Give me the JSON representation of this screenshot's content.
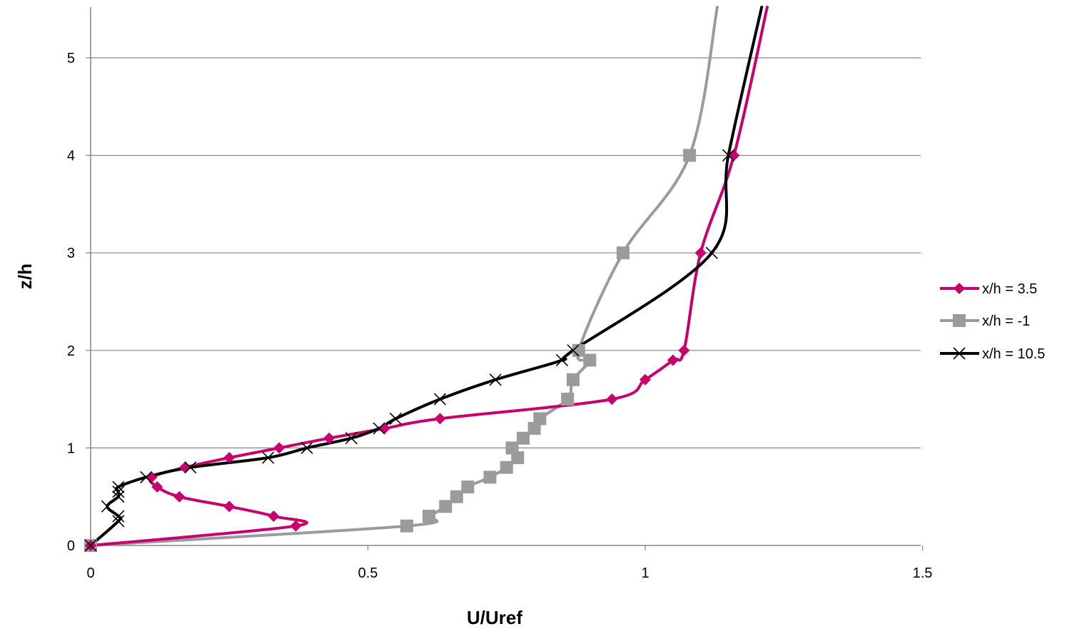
{
  "chart_data": {
    "type": "line",
    "xlabel": "U/Uref",
    "ylabel": "z/h",
    "xlim": [
      0,
      1.5
    ],
    "ylim": [
      0,
      5.5
    ],
    "xticks": [
      0,
      0.5,
      1,
      1.5
    ],
    "xtick_labels": [
      "0",
      "0.5",
      "1",
      "1.5"
    ],
    "yticks": [
      0,
      1,
      2,
      3,
      4,
      5
    ],
    "ytick_labels": [
      "0",
      "1",
      "2",
      "3",
      "4",
      "5"
    ],
    "grid": "horizontal",
    "legend_position": "right",
    "series": [
      {
        "name": "x/h = 3.5",
        "color": "#C8006E",
        "marker": "diamond",
        "points": [
          [
            0,
            0
          ],
          [
            0.37,
            0.2
          ],
          [
            0.33,
            0.3
          ],
          [
            0.25,
            0.4
          ],
          [
            0.16,
            0.5
          ],
          [
            0.12,
            0.6
          ],
          [
            0.11,
            0.7
          ],
          [
            0.17,
            0.8
          ],
          [
            0.25,
            0.9
          ],
          [
            0.34,
            1.0
          ],
          [
            0.43,
            1.1
          ],
          [
            0.53,
            1.2
          ],
          [
            0.63,
            1.3
          ],
          [
            0.94,
            1.5
          ],
          [
            1.0,
            1.7
          ],
          [
            1.05,
            1.9
          ],
          [
            1.07,
            2.0
          ],
          [
            1.1,
            3.0
          ],
          [
            1.16,
            4.0
          ]
        ],
        "tail": [
          1.22,
          5.5
        ]
      },
      {
        "name": "x/h = -1",
        "color": "#9B9B9B",
        "marker": "square",
        "points": [
          [
            0,
            0
          ],
          [
            0.57,
            0.2
          ],
          [
            0.61,
            0.3
          ],
          [
            0.64,
            0.4
          ],
          [
            0.66,
            0.5
          ],
          [
            0.68,
            0.6
          ],
          [
            0.72,
            0.7
          ],
          [
            0.75,
            0.8
          ],
          [
            0.77,
            0.9
          ],
          [
            0.76,
            1.0
          ],
          [
            0.78,
            1.1
          ],
          [
            0.8,
            1.2
          ],
          [
            0.81,
            1.3
          ],
          [
            0.86,
            1.5
          ],
          [
            0.87,
            1.7
          ],
          [
            0.9,
            1.9
          ],
          [
            0.88,
            2.0
          ],
          [
            0.96,
            3.0
          ],
          [
            1.08,
            4.0
          ]
        ],
        "tail": [
          1.13,
          5.5
        ]
      },
      {
        "name": "x/h = 10.5",
        "color": "#000000",
        "marker": "x",
        "points": [
          [
            0,
            0
          ],
          [
            0.05,
            0.25
          ],
          [
            0.05,
            0.3
          ],
          [
            0.03,
            0.4
          ],
          [
            0.05,
            0.5
          ],
          [
            0.05,
            0.55
          ],
          [
            0.05,
            0.6
          ],
          [
            0.1,
            0.7
          ],
          [
            0.18,
            0.8
          ],
          [
            0.32,
            0.9
          ],
          [
            0.39,
            1.0
          ],
          [
            0.47,
            1.1
          ],
          [
            0.52,
            1.2
          ],
          [
            0.55,
            1.3
          ],
          [
            0.63,
            1.5
          ],
          [
            0.73,
            1.7
          ],
          [
            0.85,
            1.9
          ],
          [
            0.87,
            2.0
          ],
          [
            1.12,
            3.0
          ],
          [
            1.15,
            4.0
          ]
        ],
        "tail": [
          1.21,
          5.5
        ]
      }
    ]
  }
}
